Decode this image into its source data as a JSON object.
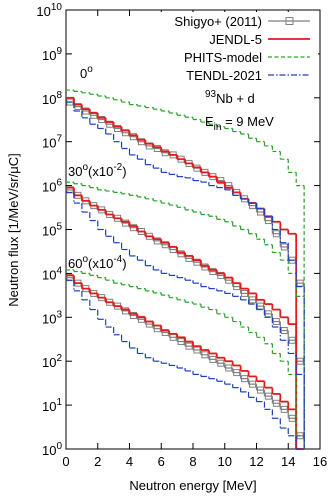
{
  "chart_data": {
    "type": "histogram",
    "xlabel": "Neutron energy [MeV]",
    "ylabel": "Neutron flux [1/MeV/sr/μC]",
    "log_y": true,
    "legend": "upper right",
    "xlim": [
      0,
      16
    ],
    "ylim": [
      1,
      10000000000.0
    ],
    "xticks": [
      0,
      2,
      4,
      6,
      8,
      10,
      12,
      14,
      16
    ],
    "yticks": [
      {
        "value": 1,
        "label": "10",
        "exponent": "0"
      },
      {
        "value": 10,
        "label": "10",
        "exponent": "1"
      },
      {
        "value": 100,
        "label": "10",
        "exponent": "2"
      },
      {
        "value": 1000,
        "label": "10",
        "exponent": "3"
      },
      {
        "value": 10000,
        "label": "10",
        "exponent": "4"
      },
      {
        "value": 100000,
        "label": "10",
        "exponent": "5"
      },
      {
        "value": 1000000,
        "label": "10",
        "exponent": "6"
      },
      {
        "value": 10000000,
        "label": "10",
        "exponent": "7"
      },
      {
        "value": 100000000,
        "label": "10",
        "exponent": "8"
      },
      {
        "value": 1000000000,
        "label": "10",
        "exponent": "9"
      },
      {
        "value": 10000000000,
        "label": "10",
        "exponent": "10"
      }
    ],
    "bins": [
      0,
      0.5,
      1,
      1.5,
      2,
      2.5,
      3,
      3.5,
      4,
      4.5,
      5,
      5.5,
      6,
      6.5,
      7,
      7.5,
      8,
      8.5,
      9,
      9.5,
      10,
      10.5,
      11,
      11.5,
      12,
      12.5,
      13,
      13.5,
      14,
      14.5,
      15
    ],
    "annotations": [
      [
        {
          "text": "0"
        },
        {
          "text": "o",
          "sup": true
        }
      ],
      [
        {
          "text": "93",
          "sup": true
        },
        {
          "text": "Nb + d"
        }
      ],
      [
        {
          "text": "E"
        },
        {
          "text": "in",
          "sub": true
        },
        {
          "text": " = 9 MeV"
        }
      ],
      [
        {
          "text": "30"
        },
        {
          "text": "o",
          "sup": true
        },
        {
          "text": "(x10"
        },
        {
          "text": "-2",
          "sup": true
        },
        {
          "text": ")"
        }
      ],
      [
        {
          "text": "60"
        },
        {
          "text": "o",
          "sup": true
        },
        {
          "text": "(x10"
        },
        {
          "text": "-4",
          "sup": true
        },
        {
          "text": ")"
        }
      ]
    ],
    "series": [
      {
        "name": "Shigyo+ (2011)",
        "color": "#808080",
        "dash": "solid",
        "marker": "square",
        "values": [
          [
            80000000.0,
            63000000.0,
            50000000.0,
            40000000.0,
            32000000.0,
            25000000.0,
            20000000.0,
            16000000.0,
            13000000.0,
            10000000.0,
            8000000.0,
            7000000.0,
            5600000.0,
            5000000.0,
            4000000.0,
            3200000.0,
            2500000.0,
            2000000.0,
            1600000.0,
            1300000.0,
            1000000.0,
            700000.0,
            500000.0,
            350000.0,
            250000.0,
            160000.0,
            80000.0,
            40000.0,
            20000.0,
            6000.0
          ],
          [
            800000.0,
            600000.0,
            450000.0,
            350000.0,
            280000.0,
            220000.0,
            180000.0,
            140000.0,
            110000.0,
            90000.0,
            70000.0,
            55000.0,
            45000.0,
            35000.0,
            28000.0,
            22000.0,
            18000.0,
            14000.0,
            11000.0,
            9000.0,
            7000.0,
            5000.0,
            3500.0,
            2500.0,
            1800.0,
            1200.0,
            800,
            500,
            300,
            100
          ],
          [
            8000.0,
            6000.0,
            4500.0,
            3500.0,
            2800.0,
            2200.0,
            1800.0,
            1400.0,
            1100.0,
            900,
            700,
            550,
            450,
            350,
            280,
            220,
            180,
            140,
            110,
            90,
            70,
            55,
            40,
            30,
            22,
            16,
            11,
            8,
            5,
            2
          ]
        ]
      },
      {
        "name": "JENDL-5",
        "color": "#e41a1c",
        "dash": "solid",
        "values": [
          [
            100000000.0,
            70000000.0,
            55000000.0,
            45000000.0,
            35000000.0,
            28000000.0,
            22000000.0,
            18000000.0,
            14000000.0,
            11000000.0,
            9000000.0,
            7500000.0,
            6000000.0,
            5000000.0,
            4000000.0,
            3200000.0,
            2600000.0,
            2000000.0,
            1600000.0,
            1200000.0,
            900000.0,
            700000.0,
            500000.0,
            400000.0,
            300000.0,
            200000.0,
            150000.0,
            100000.0,
            80000.0,
            1
          ],
          [
            900000.0,
            600000.0,
            450000.0,
            350000.0,
            280000.0,
            220000.0,
            180000.0,
            150000.0,
            120000.0,
            90000.0,
            70000.0,
            60000.0,
            50000.0,
            40000.0,
            30000.0,
            25000.0,
            20000.0,
            15000.0,
            12000.0,
            10000.0,
            8000.0,
            6000.0,
            4500.0,
            3500.0,
            2500.0,
            2000.0,
            1500.0,
            1000.0,
            700,
            1
          ],
          [
            9000.0,
            6000.0,
            4500.0,
            3500.0,
            2800.0,
            2200.0,
            1800.0,
            1500.0,
            1200.0,
            1000.0,
            800,
            650,
            500,
            420,
            350,
            280,
            220,
            180,
            150,
            120,
            100,
            80,
            60,
            45,
            35,
            25,
            18,
            12,
            8,
            1
          ]
        ]
      },
      {
        "name": "PHITS-model",
        "color": "#2ca02c",
        "dash": "dashed",
        "values": [
          [
            150000000.0,
            140000000.0,
            130000000.0,
            120000000.0,
            110000000.0,
            100000000.0,
            90000000.0,
            80000000.0,
            70000000.0,
            65000000.0,
            60000000.0,
            55000000.0,
            50000000.0,
            45000000.0,
            40000000.0,
            36000000.0,
            32000000.0,
            28000000.0,
            25000000.0,
            22000000.0,
            20000000.0,
            17000000.0,
            15000000.0,
            12000000.0,
            10000000.0,
            8000000.0,
            6000000.0,
            4000000.0,
            2000000.0,
            1000000.0
          ],
          [
            1200000.0,
            1100000.0,
            1000000.0,
            900000.0,
            800000.0,
            750000.0,
            700000.0,
            650000.0,
            600000.0,
            550000.0,
            500000.0,
            450000.0,
            400000.0,
            360000.0,
            320000.0,
            280000.0,
            250000.0,
            220000.0,
            200000.0,
            170000.0,
            150000.0,
            120000.0,
            100000.0,
            80000.0,
            60000.0,
            45000.0,
            30000.0,
            20000.0,
            10000.0,
            3000.0
          ],
          [
            12000.0,
            11000.0,
            10000.0,
            9000.0,
            8000.0,
            7000.0,
            6000.0,
            5500.0,
            5000.0,
            4500.0,
            4000.0,
            3600.0,
            3200.0,
            2800.0,
            2500.0,
            2200.0,
            2000.0,
            1700.0,
            1500.0,
            1200.0,
            1000.0,
            800,
            600,
            450,
            350,
            250,
            150,
            100,
            50,
            2
          ]
        ]
      },
      {
        "name": "TENDL-2021",
        "color": "#1f3fbf",
        "dash": "dashdot",
        "values": [
          [
            80000000.0,
            50000000.0,
            35000000.0,
            25000000.0,
            20000000.0,
            15000000.0,
            10000000.0,
            7000000.0,
            5000000.0,
            4000000.0,
            3000000.0,
            2500000.0,
            2000000.0,
            1800000.0,
            1600000.0,
            1500000.0,
            1300000.0,
            1200000.0,
            1000000.0,
            900000.0,
            800000.0,
            600000.0,
            500000.0,
            400000.0,
            300000.0,
            200000.0,
            100000.0,
            50000.0,
            20000.0,
            5000.0
          ],
          [
            700000.0,
            400000.0,
            250000.0,
            160000.0,
            100000.0,
            70000.0,
            50000.0,
            35000.0,
            25000.0,
            20000.0,
            15000.0,
            12000.0,
            10000.0,
            9000.0,
            8000.0,
            7000.0,
            6000.0,
            5000.0,
            4500.0,
            4000.0,
            3500.0,
            3000.0,
            2500.0,
            2000.0,
            1500.0,
            1000.0,
            600,
            300,
            150,
            50
          ],
          [
            7000.0,
            4000.0,
            2500.0,
            1500.0,
            900,
            600,
            400,
            280,
            200,
            150,
            120,
            100,
            90,
            80,
            70,
            60,
            50,
            45,
            40,
            35,
            30,
            25,
            20,
            15,
            12,
            8,
            5,
            3,
            2,
            1
          ]
        ]
      }
    ]
  }
}
